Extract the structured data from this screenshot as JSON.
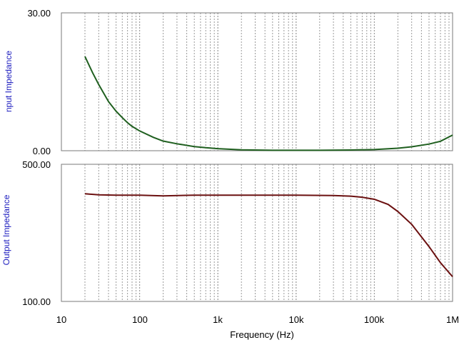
{
  "chart_data": [
    {
      "type": "line",
      "ylabel": "nput Impedance",
      "ylim": [
        0,
        30
      ],
      "ytick_labels": [
        "30.00",
        "0.00"
      ],
      "xscale": "log",
      "xlim": [
        10,
        1000000
      ],
      "grid": "vertical-minor-dashed",
      "series": [
        {
          "color": "#1f5f1f",
          "x": [
            20,
            25,
            30,
            40,
            50,
            60,
            70,
            80,
            100,
            150,
            200,
            300,
            500,
            700,
            1000,
            2000,
            5000,
            10000,
            20000,
            50000,
            100000,
            200000,
            300000,
            500000,
            700000,
            1000000
          ],
          "y": [
            20.5,
            17.0,
            14.4,
            10.7,
            8.6,
            7.2,
            6.1,
            5.3,
            4.3,
            2.9,
            2.1,
            1.5,
            0.9,
            0.65,
            0.45,
            0.2,
            0.1,
            0.1,
            0.1,
            0.15,
            0.25,
            0.55,
            0.85,
            1.45,
            2.05,
            3.4
          ]
        }
      ]
    },
    {
      "type": "line",
      "ylabel": "Output Impedance",
      "ylim": [
        100,
        500
      ],
      "ytick_labels": [
        "500.00",
        "100.00"
      ],
      "xscale": "log",
      "xlim": [
        10,
        1000000
      ],
      "xlabel": "Frequency (Hz)",
      "xtick_labels": [
        "10",
        "100",
        "1k",
        "10k",
        "100k",
        "1M"
      ],
      "grid": "vertical-minor-dashed",
      "series": [
        {
          "color": "#6b1010",
          "x": [
            20,
            30,
            50,
            100,
            200,
            500,
            1000,
            10000,
            30000,
            50000,
            70000,
            100000,
            150000,
            200000,
            300000,
            500000,
            700000,
            1000000
          ],
          "y": [
            414,
            411,
            410,
            410,
            408,
            410,
            410,
            410,
            409,
            407,
            404,
            398,
            383,
            362,
            325,
            260,
            213,
            172
          ]
        }
      ]
    }
  ]
}
